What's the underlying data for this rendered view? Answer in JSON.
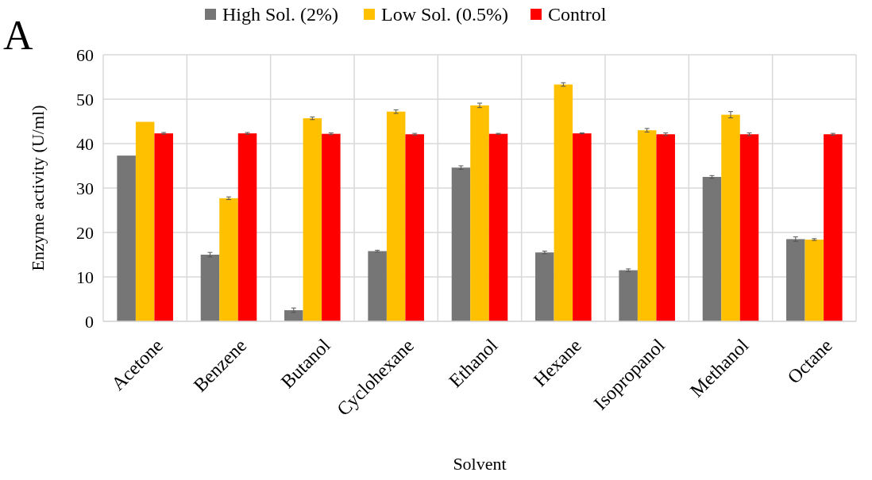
{
  "chart_data": {
    "type": "bar",
    "xlabel": "Solvent",
    "ylabel": "Enzyme activity (U/ml)",
    "annotations": [
      "A"
    ],
    "categories": [
      "Acetone",
      "Benzene",
      "Butanol",
      "Cyclohexane",
      "Ethanol",
      "Hexane",
      "Isopropanol",
      "Methanol",
      "Octane"
    ],
    "series": [
      {
        "name": "High Sol. (2%)",
        "color": "#767676",
        "values": [
          37.3,
          15.0,
          2.5,
          15.8,
          34.6,
          15.5,
          11.5,
          32.5,
          18.5
        ],
        "errors": [
          null,
          0.5,
          0.5,
          0.2,
          0.4,
          0.3,
          0.3,
          0.3,
          0.5
        ]
      },
      {
        "name": "Low Sol. (0.5%)",
        "color": "#ffc000",
        "values": [
          44.9,
          27.7,
          45.7,
          47.2,
          48.6,
          53.3,
          43.0,
          46.5,
          18.4
        ],
        "errors": [
          null,
          0.3,
          0.3,
          0.4,
          0.5,
          0.4,
          0.4,
          0.7,
          0.2
        ]
      },
      {
        "name": "Control",
        "color": "#ff0000",
        "values": [
          42.3,
          42.3,
          42.2,
          42.1,
          42.2,
          42.3,
          42.1,
          42.1,
          42.1
        ],
        "errors": [
          0.2,
          0.2,
          0.2,
          0.2,
          0.1,
          0.1,
          0.3,
          0.3,
          0.2
        ]
      }
    ],
    "ylim": [
      0,
      60
    ],
    "yticks": [
      0,
      10,
      20,
      30,
      40,
      50,
      60
    ],
    "grid": true,
    "legend": "top"
  }
}
